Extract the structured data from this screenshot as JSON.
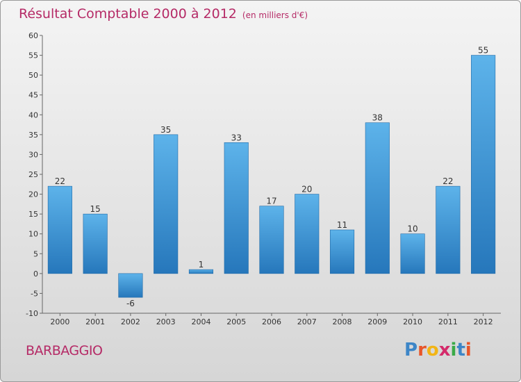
{
  "header": {
    "title": "Résultat Comptable 2000 à 2012",
    "subtitle": "(en milliers d'€)"
  },
  "footer": {
    "commune": "BARBAGGIO",
    "logo_letters": [
      "P",
      "r",
      "o",
      "x",
      "i",
      "t",
      "i"
    ],
    "logo_colors": [
      "#3d86c7",
      "#e8562a",
      "#f2b516",
      "#d42a6a",
      "#3aaa47",
      "#3d86c7",
      "#e8562a"
    ]
  },
  "chart_data": {
    "type": "bar",
    "title": "Résultat Comptable 2000 à 2012",
    "xlabel": "",
    "ylabel": "",
    "ylim": [
      -10,
      60
    ],
    "yticks": [
      -10,
      -5,
      0,
      5,
      10,
      15,
      20,
      25,
      30,
      35,
      40,
      45,
      50,
      55,
      60
    ],
    "grid": false,
    "categories": [
      "2000",
      "2001",
      "2002",
      "2003",
      "2004",
      "2005",
      "2006",
      "2007",
      "2008",
      "2009",
      "2010",
      "2011",
      "2012"
    ],
    "values": [
      22,
      15,
      -6,
      35,
      1,
      33,
      17,
      20,
      11,
      38,
      10,
      22,
      55
    ],
    "bar_color": "#4a9fdc"
  }
}
